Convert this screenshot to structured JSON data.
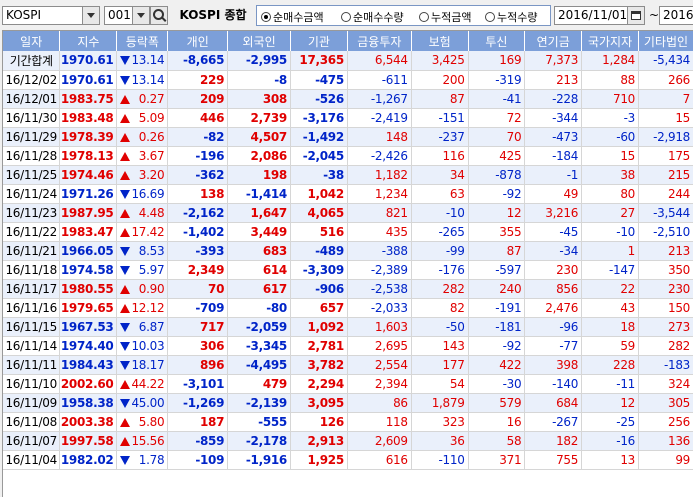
{
  "toolbar": {
    "market": "KOSPI",
    "code": "001",
    "name": "KOSPI 종합",
    "radios": [
      {
        "label": "순매수금액",
        "selected": true
      },
      {
        "label": "순매수수량",
        "selected": false
      },
      {
        "label": "누적금액",
        "selected": false
      },
      {
        "label": "누적수량",
        "selected": false
      }
    ],
    "date_from": "2016/11/01",
    "date_sep": "~",
    "date_to": "2016/",
    "icons": [
      "chevron-down-icon",
      "search-icon",
      "calendar-icon"
    ]
  },
  "colors": {
    "up": "#e00000",
    "down": "#0024c8",
    "header": "#7c9fd9",
    "alt_row": "#eaf0fb"
  },
  "table": {
    "headers": [
      "일자",
      "지수",
      "등락폭",
      "개인",
      "외국인",
      "기관",
      "금융투자",
      "보험",
      "투신",
      "연기금",
      "국가지자",
      "기타법인"
    ],
    "rows": [
      {
        "date": "기간합계",
        "index": "1970.61",
        "dir": "down",
        "change": "13.14",
        "values": [
          "-8,665",
          "-2,995",
          "17,365",
          "6,544",
          "3,425",
          "169",
          "7,373",
          "1,284",
          "-5,434"
        ]
      },
      {
        "date": "16/12/02",
        "index": "1970.61",
        "dir": "down",
        "change": "13.14",
        "values": [
          "229",
          "-8",
          "-475",
          "-611",
          "200",
          "-319",
          "213",
          "88",
          "266"
        ]
      },
      {
        "date": "16/12/01",
        "index": "1983.75",
        "dir": "up",
        "change": "0.27",
        "values": [
          "209",
          "308",
          "-526",
          "-1,267",
          "87",
          "-41",
          "-228",
          "710",
          "7"
        ]
      },
      {
        "date": "16/11/30",
        "index": "1983.48",
        "dir": "up",
        "change": "5.09",
        "values": [
          "446",
          "2,739",
          "-3,176",
          "-2,419",
          "-151",
          "72",
          "-344",
          "-3",
          "15"
        ]
      },
      {
        "date": "16/11/29",
        "index": "1978.39",
        "dir": "up",
        "change": "0.26",
        "values": [
          "-82",
          "4,507",
          "-1,492",
          "148",
          "-237",
          "70",
          "-473",
          "-60",
          "-2,918"
        ]
      },
      {
        "date": "16/11/28",
        "index": "1978.13",
        "dir": "up",
        "change": "3.67",
        "values": [
          "-196",
          "2,086",
          "-2,045",
          "-2,426",
          "116",
          "425",
          "-184",
          "15",
          "175"
        ]
      },
      {
        "date": "16/11/25",
        "index": "1974.46",
        "dir": "up",
        "change": "3.20",
        "values": [
          "-362",
          "198",
          "-38",
          "1,182",
          "34",
          "-878",
          "-1",
          "38",
          "215"
        ]
      },
      {
        "date": "16/11/24",
        "index": "1971.26",
        "dir": "down",
        "change": "16.69",
        "values": [
          "138",
          "-1,414",
          "1,042",
          "1,234",
          "63",
          "-92",
          "49",
          "80",
          "244"
        ]
      },
      {
        "date": "16/11/23",
        "index": "1987.95",
        "dir": "up",
        "change": "4.48",
        "values": [
          "-2,162",
          "1,647",
          "4,065",
          "821",
          "-10",
          "12",
          "3,216",
          "27",
          "-3,544"
        ]
      },
      {
        "date": "16/11/22",
        "index": "1983.47",
        "dir": "up",
        "change": "17.42",
        "values": [
          "-1,402",
          "3,449",
          "516",
          "435",
          "-265",
          "355",
          "-45",
          "-10",
          "-2,510"
        ]
      },
      {
        "date": "16/11/21",
        "index": "1966.05",
        "dir": "down",
        "change": "8.53",
        "values": [
          "-393",
          "683",
          "-489",
          "-388",
          "-99",
          "87",
          "-34",
          "1",
          "213"
        ]
      },
      {
        "date": "16/11/18",
        "index": "1974.58",
        "dir": "down",
        "change": "5.97",
        "values": [
          "2,349",
          "614",
          "-3,309",
          "-2,389",
          "-176",
          "-597",
          "230",
          "-147",
          "350"
        ]
      },
      {
        "date": "16/11/17",
        "index": "1980.55",
        "dir": "up",
        "change": "0.90",
        "values": [
          "70",
          "617",
          "-906",
          "-2,538",
          "282",
          "240",
          "856",
          "22",
          "230"
        ]
      },
      {
        "date": "16/11/16",
        "index": "1979.65",
        "dir": "up",
        "change": "12.12",
        "values": [
          "-709",
          "-80",
          "657",
          "-2,033",
          "82",
          "-191",
          "2,476",
          "43",
          "150"
        ]
      },
      {
        "date": "16/11/15",
        "index": "1967.53",
        "dir": "down",
        "change": "6.87",
        "values": [
          "717",
          "-2,059",
          "1,092",
          "1,603",
          "-50",
          "-181",
          "-96",
          "18",
          "273"
        ]
      },
      {
        "date": "16/11/14",
        "index": "1974.40",
        "dir": "down",
        "change": "10.03",
        "values": [
          "306",
          "-3,345",
          "2,781",
          "2,695",
          "143",
          "-92",
          "-77",
          "59",
          "282"
        ]
      },
      {
        "date": "16/11/11",
        "index": "1984.43",
        "dir": "down",
        "change": "18.17",
        "values": [
          "896",
          "-4,495",
          "3,782",
          "2,554",
          "177",
          "422",
          "398",
          "228",
          "-183"
        ]
      },
      {
        "date": "16/11/10",
        "index": "2002.60",
        "dir": "up",
        "change": "44.22",
        "values": [
          "-3,101",
          "479",
          "2,294",
          "2,394",
          "54",
          "-30",
          "-140",
          "-11",
          "324"
        ]
      },
      {
        "date": "16/11/09",
        "index": "1958.38",
        "dir": "down",
        "change": "45.00",
        "values": [
          "-1,269",
          "-2,139",
          "3,095",
          "86",
          "1,879",
          "579",
          "684",
          "12",
          "305"
        ]
      },
      {
        "date": "16/11/08",
        "index": "2003.38",
        "dir": "up",
        "change": "5.80",
        "values": [
          "187",
          "-555",
          "126",
          "118",
          "323",
          "16",
          "-267",
          "-25",
          "256"
        ]
      },
      {
        "date": "16/11/07",
        "index": "1997.58",
        "dir": "up",
        "change": "15.56",
        "values": [
          "-859",
          "-2,178",
          "2,913",
          "2,609",
          "36",
          "58",
          "182",
          "-16",
          "136"
        ]
      },
      {
        "date": "16/11/04",
        "index": "1982.02",
        "dir": "down",
        "change": "1.78",
        "values": [
          "-109",
          "-1,916",
          "1,925",
          "616",
          "-110",
          "371",
          "755",
          "13",
          "99"
        ]
      }
    ]
  }
}
